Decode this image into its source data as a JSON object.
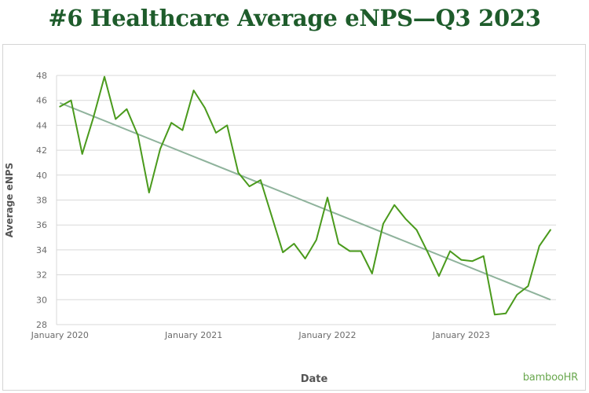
{
  "title": "#6 Healthcare Average eNPS—Q3 2023",
  "logo": "bambooHR",
  "colors": {
    "title": "#1e5c2b",
    "series": "#4a9a1c",
    "trend": "#8fb39c",
    "grid": "#d9d9d9"
  },
  "chart_data": {
    "type": "line",
    "xlabel": "Date",
    "ylabel": "Average eNPS",
    "ylim": [
      28,
      48
    ],
    "yticks": [
      28,
      30,
      32,
      34,
      36,
      38,
      40,
      42,
      44,
      46,
      48
    ],
    "xticks": [
      {
        "label": "January 2020",
        "x": 0
      },
      {
        "label": "January 2021",
        "x": 12
      },
      {
        "label": "January 2022",
        "x": 24
      },
      {
        "label": "January 2023",
        "x": 36
      }
    ],
    "xlim": [
      -0.3,
      44.5
    ],
    "grid": true,
    "series": [
      {
        "x": [
          0,
          1,
          2,
          3,
          4,
          5,
          6,
          7,
          8,
          9,
          10,
          11,
          12,
          13,
          14,
          15,
          16,
          17,
          18,
          19,
          20,
          21,
          22,
          23,
          24,
          25,
          26,
          27,
          28,
          29,
          30,
          31,
          32,
          33,
          34,
          35,
          36,
          37,
          38,
          39,
          40,
          41,
          42,
          43,
          44
        ],
        "values": [
          45.5,
          46.0,
          41.7,
          44.6,
          47.9,
          44.5,
          45.3,
          43.2,
          38.6,
          42.1,
          44.2,
          43.6,
          46.8,
          45.4,
          43.4,
          44.0,
          40.2,
          39.1,
          39.6,
          36.7,
          33.8,
          34.5,
          33.3,
          34.8,
          38.2,
          34.5,
          33.9,
          33.9,
          32.1,
          36.1,
          37.6,
          36.5,
          35.6,
          33.8,
          31.9,
          33.9,
          33.2,
          33.1,
          33.5,
          28.8,
          28.9,
          30.4,
          31.1,
          34.3,
          35.6
        ]
      }
    ],
    "trendline": {
      "x": [
        0,
        44
      ],
      "values": [
        45.8,
        30.0
      ]
    }
  }
}
